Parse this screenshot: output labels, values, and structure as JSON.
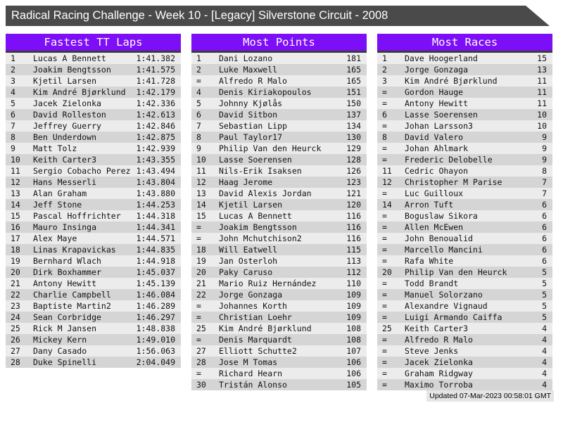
{
  "title": "Radical Racing Challenge - Week 10 - [Legacy] Silverstone Circuit - 2008",
  "footer": {
    "updated": "Updated 07-Mar-2023 00:58:01 GMT"
  },
  "colors": {
    "accent_purple": "#7d0ef8",
    "titlebar_gray": "#4a4a4a",
    "header_underline": "#3b3b3b",
    "row_light": "#ececec",
    "row_dark": "#d5d5d5"
  },
  "tables": [
    {
      "header": "Fastest TT Laps",
      "columns": [
        "rank",
        "driver",
        "lap_time"
      ],
      "rows": [
        [
          "1",
          "Lucas A Bennett",
          "1:41.382"
        ],
        [
          "2",
          "Joakim Bengtsson",
          "1:41.575"
        ],
        [
          "3",
          "Kjetil Larsen",
          "1:41.728"
        ],
        [
          "4",
          "Kim André Bjørklund",
          "1:42.179"
        ],
        [
          "5",
          "Jacek Zielonka",
          "1:42.336"
        ],
        [
          "6",
          "David Rolleston",
          "1:42.613"
        ],
        [
          "7",
          "Jeffrey Guerry",
          "1:42.846"
        ],
        [
          "8",
          "Ben Underdown",
          "1:42.875"
        ],
        [
          "9",
          "Matt Tolz",
          "1:42.939"
        ],
        [
          "10",
          "Keith Carter3",
          "1:43.355"
        ],
        [
          "11",
          "Sergio Cobacho Perez",
          "1:43.494"
        ],
        [
          "12",
          "Hans Messerli",
          "1:43.804"
        ],
        [
          "13",
          "Alan Graham",
          "1:43.880"
        ],
        [
          "14",
          "Jeff Stone",
          "1:44.253"
        ],
        [
          "15",
          "Pascal Hoffrichter",
          "1:44.318"
        ],
        [
          "16",
          "Mauro Insinga",
          "1:44.341"
        ],
        [
          "17",
          "Alex Maye",
          "1:44.571"
        ],
        [
          "18",
          "Linas Krapavickas",
          "1:44.835"
        ],
        [
          "19",
          "Bernhard Wlach",
          "1:44.918"
        ],
        [
          "20",
          "Dirk Boxhammer",
          "1:45.037"
        ],
        [
          "21",
          "Antony Hewitt",
          "1:45.139"
        ],
        [
          "22",
          "Charlie Campbell",
          "1:46.084"
        ],
        [
          "23",
          "Baptiste Martin2",
          "1:46.289"
        ],
        [
          "24",
          "Sean Corbridge",
          "1:46.297"
        ],
        [
          "25",
          "Rick M Jansen",
          "1:48.838"
        ],
        [
          "26",
          "Mickey Kern",
          "1:49.010"
        ],
        [
          "27",
          "Dany Casado",
          "1:56.063"
        ],
        [
          "28",
          "Duke Spinelli",
          "2:04.049"
        ]
      ]
    },
    {
      "header": "Most Points",
      "columns": [
        "rank",
        "driver",
        "points"
      ],
      "rows": [
        [
          "1",
          "Dani Lozano",
          "181"
        ],
        [
          "2",
          "Luke Maxwell",
          "165"
        ],
        [
          "=",
          "Alfredo R Malo",
          "165"
        ],
        [
          "4",
          "Denis Kiriakopoulos",
          "151"
        ],
        [
          "5",
          "Johnny Kjølås",
          "150"
        ],
        [
          "6",
          "David Sitbon",
          "137"
        ],
        [
          "7",
          "Sebastian Lipp",
          "134"
        ],
        [
          "8",
          "Paul Taylor17",
          "130"
        ],
        [
          "9",
          "Philip Van den Heurck",
          "129"
        ],
        [
          "10",
          "Lasse Soerensen",
          "128"
        ],
        [
          "11",
          "Nils-Erik Isaksen",
          "126"
        ],
        [
          "12",
          "Haag Jerome",
          "123"
        ],
        [
          "13",
          "David Alexis Jordan",
          "121"
        ],
        [
          "14",
          "Kjetil Larsen",
          "120"
        ],
        [
          "15",
          "Lucas A Bennett",
          "116"
        ],
        [
          "=",
          "Joakim Bengtsson",
          "116"
        ],
        [
          "=",
          "John Mchutchison2",
          "116"
        ],
        [
          "18",
          "Will Eatwell",
          "115"
        ],
        [
          "19",
          "Jan Osterloh",
          "113"
        ],
        [
          "20",
          "Paky Caruso",
          "112"
        ],
        [
          "21",
          "Mario Ruiz Hernández",
          "110"
        ],
        [
          "22",
          "Jorge Gonzaga",
          "109"
        ],
        [
          "=",
          "Johannes Korth",
          "109"
        ],
        [
          "=",
          "Christian Loehr",
          "109"
        ],
        [
          "25",
          "Kim André Bjørklund",
          "108"
        ],
        [
          "=",
          "Denis Marquardt",
          "108"
        ],
        [
          "27",
          "Elliott Schutte2",
          "107"
        ],
        [
          "28",
          "Jose M Tomas",
          "106"
        ],
        [
          "=",
          "Richard Hearn",
          "106"
        ],
        [
          "30",
          "Tristán Alonso",
          "105"
        ]
      ]
    },
    {
      "header": "Most Races",
      "columns": [
        "rank",
        "driver",
        "races"
      ],
      "rows": [
        [
          "1",
          "Dave Hoogerland",
          "15"
        ],
        [
          "2",
          "Jorge Gonzaga",
          "13"
        ],
        [
          "3",
          "Kim André Bjørklund",
          "11"
        ],
        [
          "=",
          "Gordon Hauge",
          "11"
        ],
        [
          "=",
          "Antony Hewitt",
          "11"
        ],
        [
          "6",
          "Lasse Soerensen",
          "10"
        ],
        [
          "=",
          "Johan Larsson3",
          "10"
        ],
        [
          "8",
          "David Valero",
          "9"
        ],
        [
          "=",
          "Johan Ahlmark",
          "9"
        ],
        [
          "=",
          "Frederic Delobelle",
          "9"
        ],
        [
          "11",
          "Cedric Ohayon",
          "8"
        ],
        [
          "12",
          "Christopher M Parise",
          "7"
        ],
        [
          "=",
          "Luc Guilloux",
          "7"
        ],
        [
          "14",
          "Arron Tuft",
          "6"
        ],
        [
          "=",
          "Boguslaw Sikora",
          "6"
        ],
        [
          "=",
          "Allen McEwen",
          "6"
        ],
        [
          "=",
          "John Benoualid",
          "6"
        ],
        [
          "=",
          "Marcello Mancini",
          "6"
        ],
        [
          "=",
          "Rafa White",
          "6"
        ],
        [
          "20",
          "Philip Van den Heurck",
          "5"
        ],
        [
          "=",
          "Todd Brandt",
          "5"
        ],
        [
          "=",
          "Manuel Solorzano",
          "5"
        ],
        [
          "=",
          "Alexandre Vignaud",
          "5"
        ],
        [
          "=",
          "Luigi Armando Caiffa",
          "5"
        ],
        [
          "25",
          "Keith Carter3",
          "4"
        ],
        [
          "=",
          "Alfredo R Malo",
          "4"
        ],
        [
          "=",
          "Steve Jenks",
          "4"
        ],
        [
          "=",
          "Jacek Zielonka",
          "4"
        ],
        [
          "=",
          "Graham Ridgway",
          "4"
        ],
        [
          "=",
          "Maximo Torroba",
          "4"
        ]
      ]
    }
  ]
}
